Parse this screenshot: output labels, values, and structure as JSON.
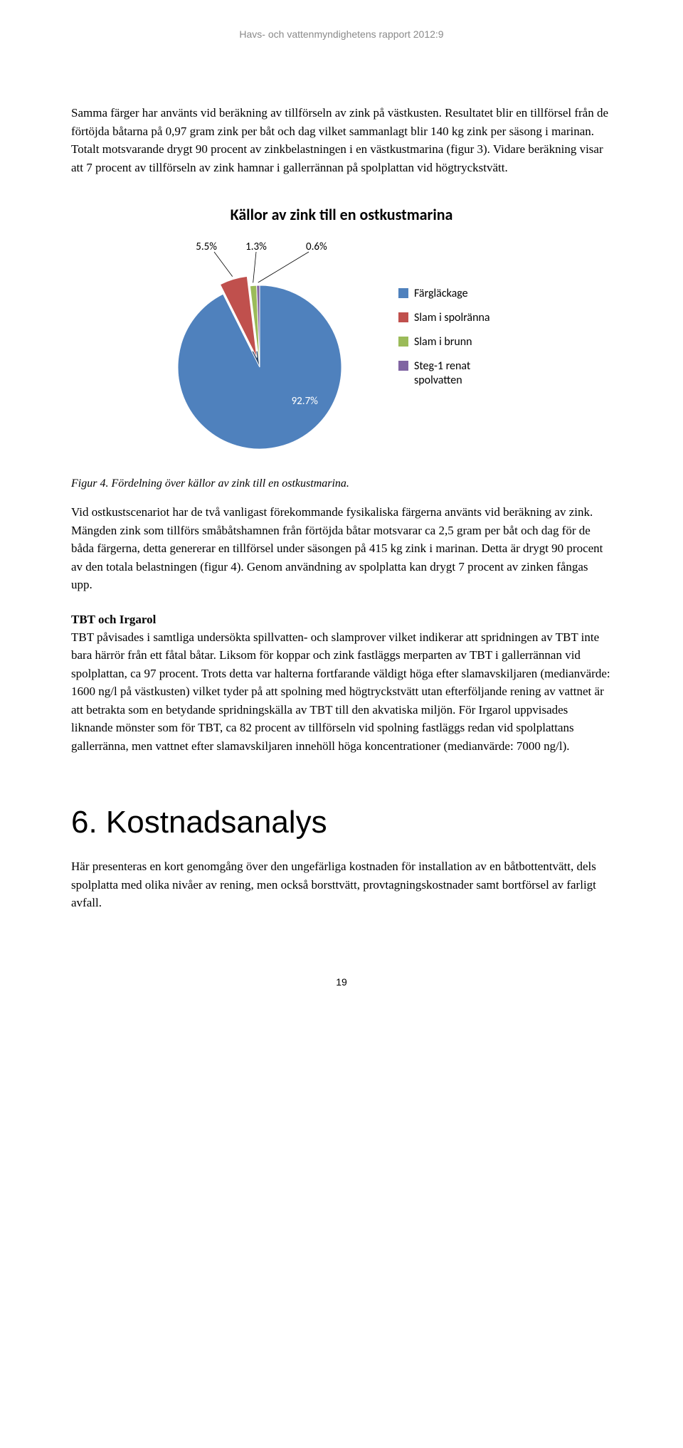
{
  "running_header": "Havs- och vattenmyndighetens rapport 2012:9",
  "paragraphs": {
    "p1": "Samma färger har använts vid beräkning av tillförseln av zink på västkusten. Resultatet blir en tillförsel från de förtöjda båtarna på 0,97 gram zink per båt och dag vilket sammanlagt blir 140 kg zink per säsong i marinan. Totalt motsvarande drygt 90 procent av zinkbelastningen i en västkustmarina (figur 3). Vidare beräkning visar att 7 procent av tillförseln av zink hamnar i gallerrännan på spolplattan vid högtryckstvätt.",
    "p2": "Vid ostkustscenariot har de två vanligast förekommande fysikaliska färgerna använts vid beräkning av zink. Mängden zink som tillförs småbåtshamnen från förtöjda båtar motsvarar ca 2,5 gram per båt och dag för de båda färgerna, detta genererar en tillförsel under säsongen på 415 kg zink i marinan. Detta är drygt 90 procent av den totala belastningen (figur 4). Genom användning av spolplatta kan drygt 7 procent av zinken fångas upp.",
    "p3_head": "TBT och Irgarol",
    "p3": "TBT påvisades i samtliga undersökta spillvatten- och slamprover vilket indikerar att spridningen av TBT inte bara härrör från ett fåtal båtar. Liksom för koppar och zink fastläggs merparten av TBT i gallerrännan vid spolplattan, ca 97 procent. Trots detta var halterna fortfarande väldigt höga efter slamavskiljaren (medianvärde: 1600 ng/l på västkusten) vilket tyder på att spolning med högtryckstvätt utan efterföljande rening av vattnet är att betrakta som en betydande spridningskälla av TBT till den akvatiska miljön. För Irgarol uppvisades liknande mönster som för TBT, ca 82 procent av tillförseln vid spolning fastläggs redan vid spolplattans gallerränna, men vattnet efter slamavskiljaren innehöll höga koncentrationer (medianvärde: 7000 ng/l).",
    "p4": "Här presenteras en kort genomgång över den ungefärliga kostnaden för installation av en båtbottentvätt, dels spolplatta med olika nivåer av rening, men också borsttvätt, provtagningskostnader samt bortförsel av farligt avfall."
  },
  "caption": "Figur 4. Fördelning över källor av zink till en ostkustmarina.",
  "section_heading": "6. Kostnadsanalys",
  "page_number": "19",
  "chart": {
    "type": "pie",
    "title": "Källor av zink till en ostkustmarina",
    "title_fontsize": 22,
    "background_color": "#ffffff",
    "slices": [
      {
        "label": "Färgläckage",
        "value": 92.7,
        "color": "#4f81bd",
        "label_text": "92.7%"
      },
      {
        "label": "Slam i spolränna",
        "value": 5.5,
        "color": "#c0504d",
        "label_text": "5.5%"
      },
      {
        "label": "Slam i brunn",
        "value": 1.3,
        "color": "#9bbb59",
        "label_text": "1.3%"
      },
      {
        "label": "Steg-1 renat spolvatten",
        "value": 0.6,
        "color": "#8064a2",
        "label_text": "0.6%"
      }
    ],
    "legend_fontsize": 16,
    "explode_index": 1,
    "start_angle_deg": -90
  }
}
